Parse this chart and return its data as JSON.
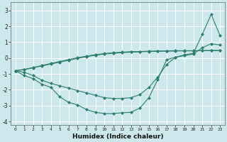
{
  "xlabel": "Humidex (Indice chaleur)",
  "bg_color": "#cce8ec",
  "grid_color": "#ffffff",
  "line_color": "#2e7d6e",
  "x": [
    0,
    1,
    2,
    3,
    4,
    5,
    6,
    7,
    8,
    9,
    10,
    11,
    12,
    13,
    14,
    15,
    16,
    17,
    18,
    19,
    20,
    21,
    22,
    23
  ],
  "line1": [
    -0.8,
    -1.1,
    -1.3,
    -1.65,
    -1.85,
    -2.45,
    -2.8,
    -2.95,
    -3.25,
    -3.42,
    -3.5,
    -3.5,
    -3.45,
    -3.42,
    -3.15,
    -2.5,
    -1.35,
    -0.1,
    0.05,
    0.2,
    0.3,
    1.5,
    2.75,
    1.4
  ],
  "line2": [
    -0.8,
    -0.9,
    -1.1,
    -1.4,
    -1.6,
    -1.75,
    -1.9,
    -2.05,
    -2.2,
    -2.35,
    -2.5,
    -2.55,
    -2.55,
    -2.5,
    -2.3,
    -1.85,
    -1.2,
    -0.4,
    0.05,
    0.15,
    0.25,
    0.65,
    0.9,
    0.82
  ],
  "line3": [
    -0.8,
    -0.73,
    -0.62,
    -0.5,
    -0.38,
    -0.26,
    -0.14,
    -0.02,
    0.08,
    0.18,
    0.25,
    0.3,
    0.34,
    0.37,
    0.39,
    0.41,
    0.42,
    0.43,
    0.44,
    0.45,
    0.45,
    0.46,
    0.46,
    0.46
  ],
  "line4": [
    -0.8,
    -0.72,
    -0.6,
    -0.47,
    -0.34,
    -0.22,
    -0.1,
    0.02,
    0.12,
    0.21,
    0.28,
    0.33,
    0.37,
    0.4,
    0.41,
    0.43,
    0.44,
    0.45,
    0.46,
    0.46,
    0.46,
    0.47,
    0.48,
    0.48
  ],
  "ylim": [
    -4.2,
    3.5
  ],
  "xlim": [
    -0.5,
    23.5
  ],
  "yticks": [
    -4,
    -3,
    -2,
    -1,
    0,
    1,
    2,
    3
  ],
  "xticks": [
    0,
    1,
    2,
    3,
    4,
    5,
    6,
    7,
    8,
    9,
    10,
    11,
    12,
    13,
    14,
    15,
    16,
    17,
    18,
    19,
    20,
    21,
    22,
    23
  ]
}
